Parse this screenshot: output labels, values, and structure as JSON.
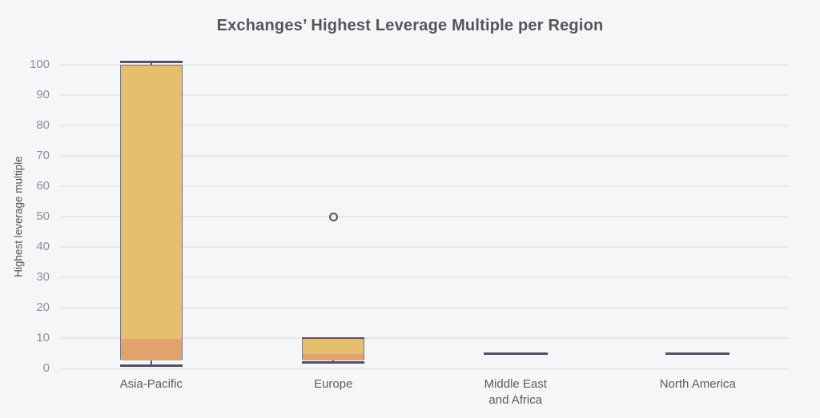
{
  "page": {
    "background": "#f5f6f8"
  },
  "chart_data": {
    "type": "boxplot",
    "title": "Exchanges’ Highest Leverage Multiple per Region",
    "ylabel": "Highest leverage multiple",
    "xlabel": "",
    "ylim": [
      0,
      100
    ],
    "yticks": [
      0,
      10,
      20,
      30,
      40,
      50,
      60,
      70,
      80,
      90,
      100
    ],
    "grid": "horizontal",
    "legend": "none",
    "categories": [
      "Asia-Pacific",
      "Europe",
      "Middle East\nand Africa",
      "North America"
    ],
    "series": [
      {
        "category": "Asia-Pacific",
        "min": 1,
        "q1": 3,
        "median": 10,
        "q3": 100,
        "max": 101,
        "outliers": []
      },
      {
        "category": "Europe",
        "min": 2,
        "q1": 3,
        "median": 5,
        "q3": 10,
        "max": 10,
        "outliers": [
          50
        ]
      },
      {
        "category": "Middle East and Africa",
        "min": 5,
        "q1": 5,
        "median": 5,
        "q3": 5,
        "max": 5,
        "outliers": []
      },
      {
        "category": "North America",
        "min": 5,
        "q1": 5,
        "median": 5,
        "q3": 5,
        "max": 5,
        "outliers": []
      }
    ],
    "colors": {
      "box_upper_fill": "#e6bf6e",
      "box_lower_fill": "#e2a26e",
      "line": "#50516a",
      "outlier_stroke": "#55565f",
      "gridline": "#e8e9ed",
      "background": "#f5f6f8",
      "title_text": "#54555a",
      "axis_text": "#8e8f99",
      "category_text": "#5b5c60"
    }
  }
}
